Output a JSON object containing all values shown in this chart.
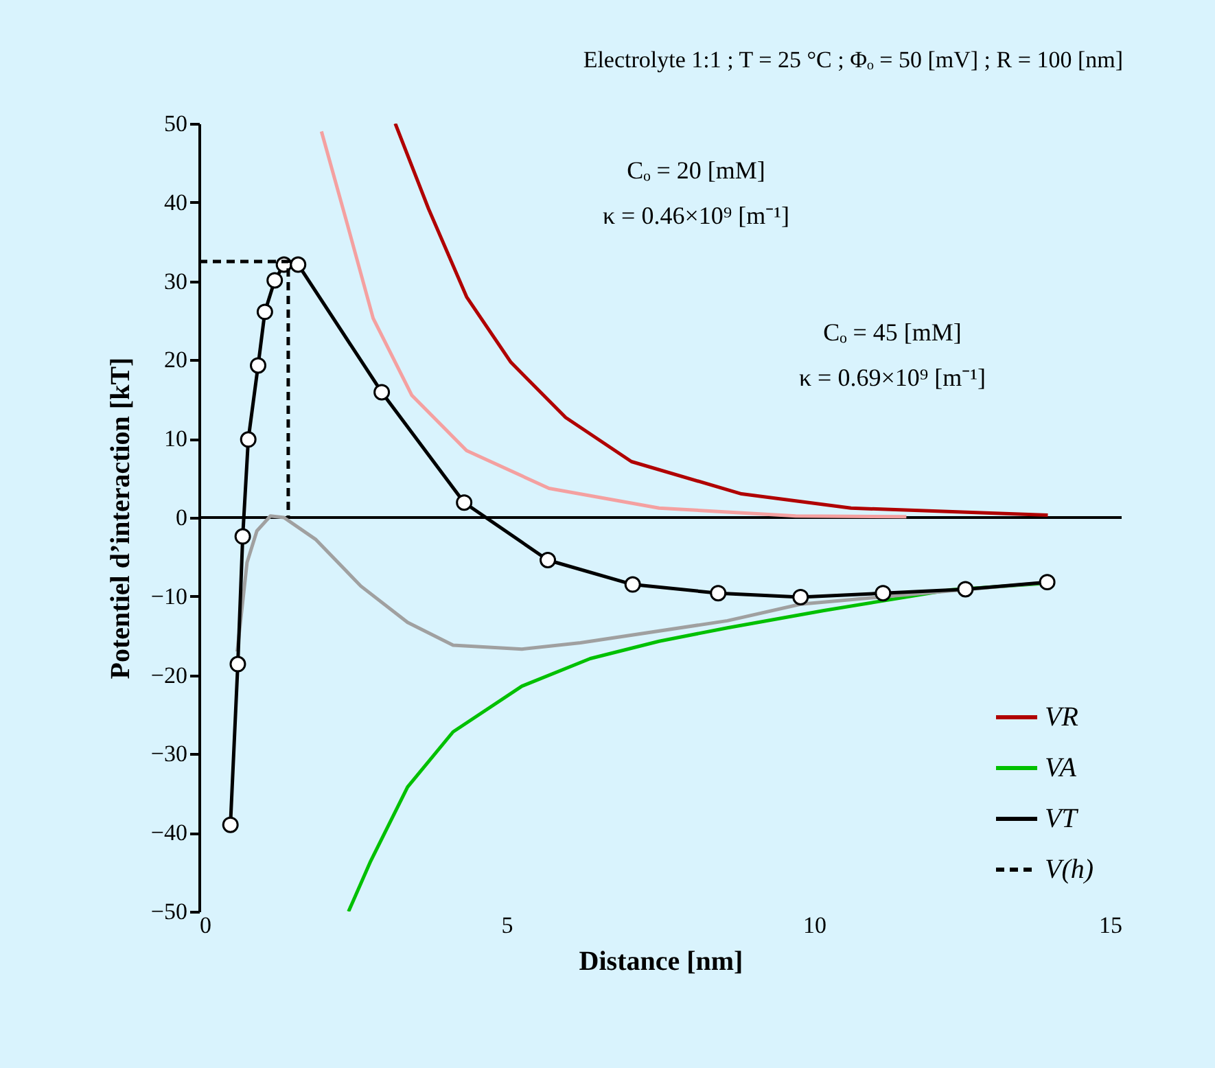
{
  "chart_data": {
    "type": "line",
    "title": "Electrolyte 1:1 ; T = 25 °C ; Φₒ = 50 [mV] ; R = 100 [nm]",
    "xlabel": "Distance [nm]",
    "ylabel": "Potentiel d’interaction [kT]",
    "xlim": [
      0,
      15
    ],
    "xticks": [
      0,
      5,
      10,
      15
    ],
    "ylim": [
      -50,
      50
    ],
    "yticks": [
      -50,
      -40,
      -30,
      -20,
      -10,
      0,
      10,
      20,
      30,
      40,
      50
    ],
    "grid": false,
    "legend": "bottom right",
    "annotations": [
      "Cₒ = 20 [mM]",
      "κ = 0.46×10⁹ [m⁻¹]",
      "Cₒ = 45 [mM]",
      "κ = 0.69×10⁹ [m⁻¹]"
    ],
    "ref_lines": [
      {
        "axis": "y",
        "value": 0,
        "color": "#000000"
      }
    ],
    "series": [
      {
        "name": "VR",
        "color": "#b00000",
        "x": [
          3.19,
          3.73,
          4.35,
          5.07,
          5.96,
          7.03,
          8.82,
          10.6,
          13.8
        ],
        "values": [
          50,
          39.2,
          28.0,
          19.7,
          12.7,
          7.1,
          3.0,
          1.2,
          0.3
        ]
      },
      {
        "color": "#f4a0a0",
        "x": [
          1.99,
          2.39,
          2.83,
          3.46,
          4.35,
          5.69,
          7.48,
          9.7,
          11.5
        ],
        "values": [
          49,
          37.8,
          25.3,
          15.5,
          8.5,
          3.7,
          1.2,
          0.2,
          0.1
        ]
      },
      {
        "name": "VA",
        "color": "#00c000",
        "x": [
          2.43,
          2.79,
          3.39,
          4.13,
          5.25,
          6.36,
          7.48,
          8.59,
          10.16,
          12.2,
          13.66
        ],
        "values": [
          -50,
          -43.6,
          -34.2,
          -27.2,
          -21.4,
          -17.9,
          -15.7,
          -14,
          -11.8,
          -9.2,
          -8.4
        ]
      },
      {
        "color": "#a0a0a0",
        "x": [
          0.62,
          0.78,
          0.94,
          1.16,
          1.38,
          1.9,
          2.63,
          3.39,
          4.13,
          5.25,
          6.2,
          8.59,
          9.78,
          11.5,
          13.7
        ],
        "values": [
          -17,
          -5.7,
          -1.7,
          0.2,
          0,
          -2.8,
          -8.7,
          -13.3,
          -16.2,
          -16.7,
          -15.9,
          -13.1,
          -11.0,
          -9.8,
          -8.3
        ]
      },
      {
        "name": "VT",
        "color": "#000000",
        "marker": "circle",
        "x": [
          0.51,
          0.63,
          0.71,
          0.8,
          0.96,
          1.07,
          1.23,
          1.38,
          1.61,
          2.97,
          4.31,
          5.67,
          7.05,
          8.44,
          9.78,
          11.12,
          12.46,
          13.79
        ],
        "values": [
          -39,
          -18.6,
          -2.4,
          9.9,
          19.3,
          26.1,
          30.1,
          32.1,
          32.1,
          15.9,
          1.9,
          -5.4,
          -8.5,
          -9.6,
          -10.1,
          -9.6,
          -9.1,
          -8.2
        ]
      },
      {
        "name": "V(h)",
        "color": "#000000",
        "line_style": "dashed",
        "x": [
          0,
          1.45,
          1.45
        ],
        "values": [
          32.5,
          32.5,
          0
        ]
      }
    ]
  }
}
